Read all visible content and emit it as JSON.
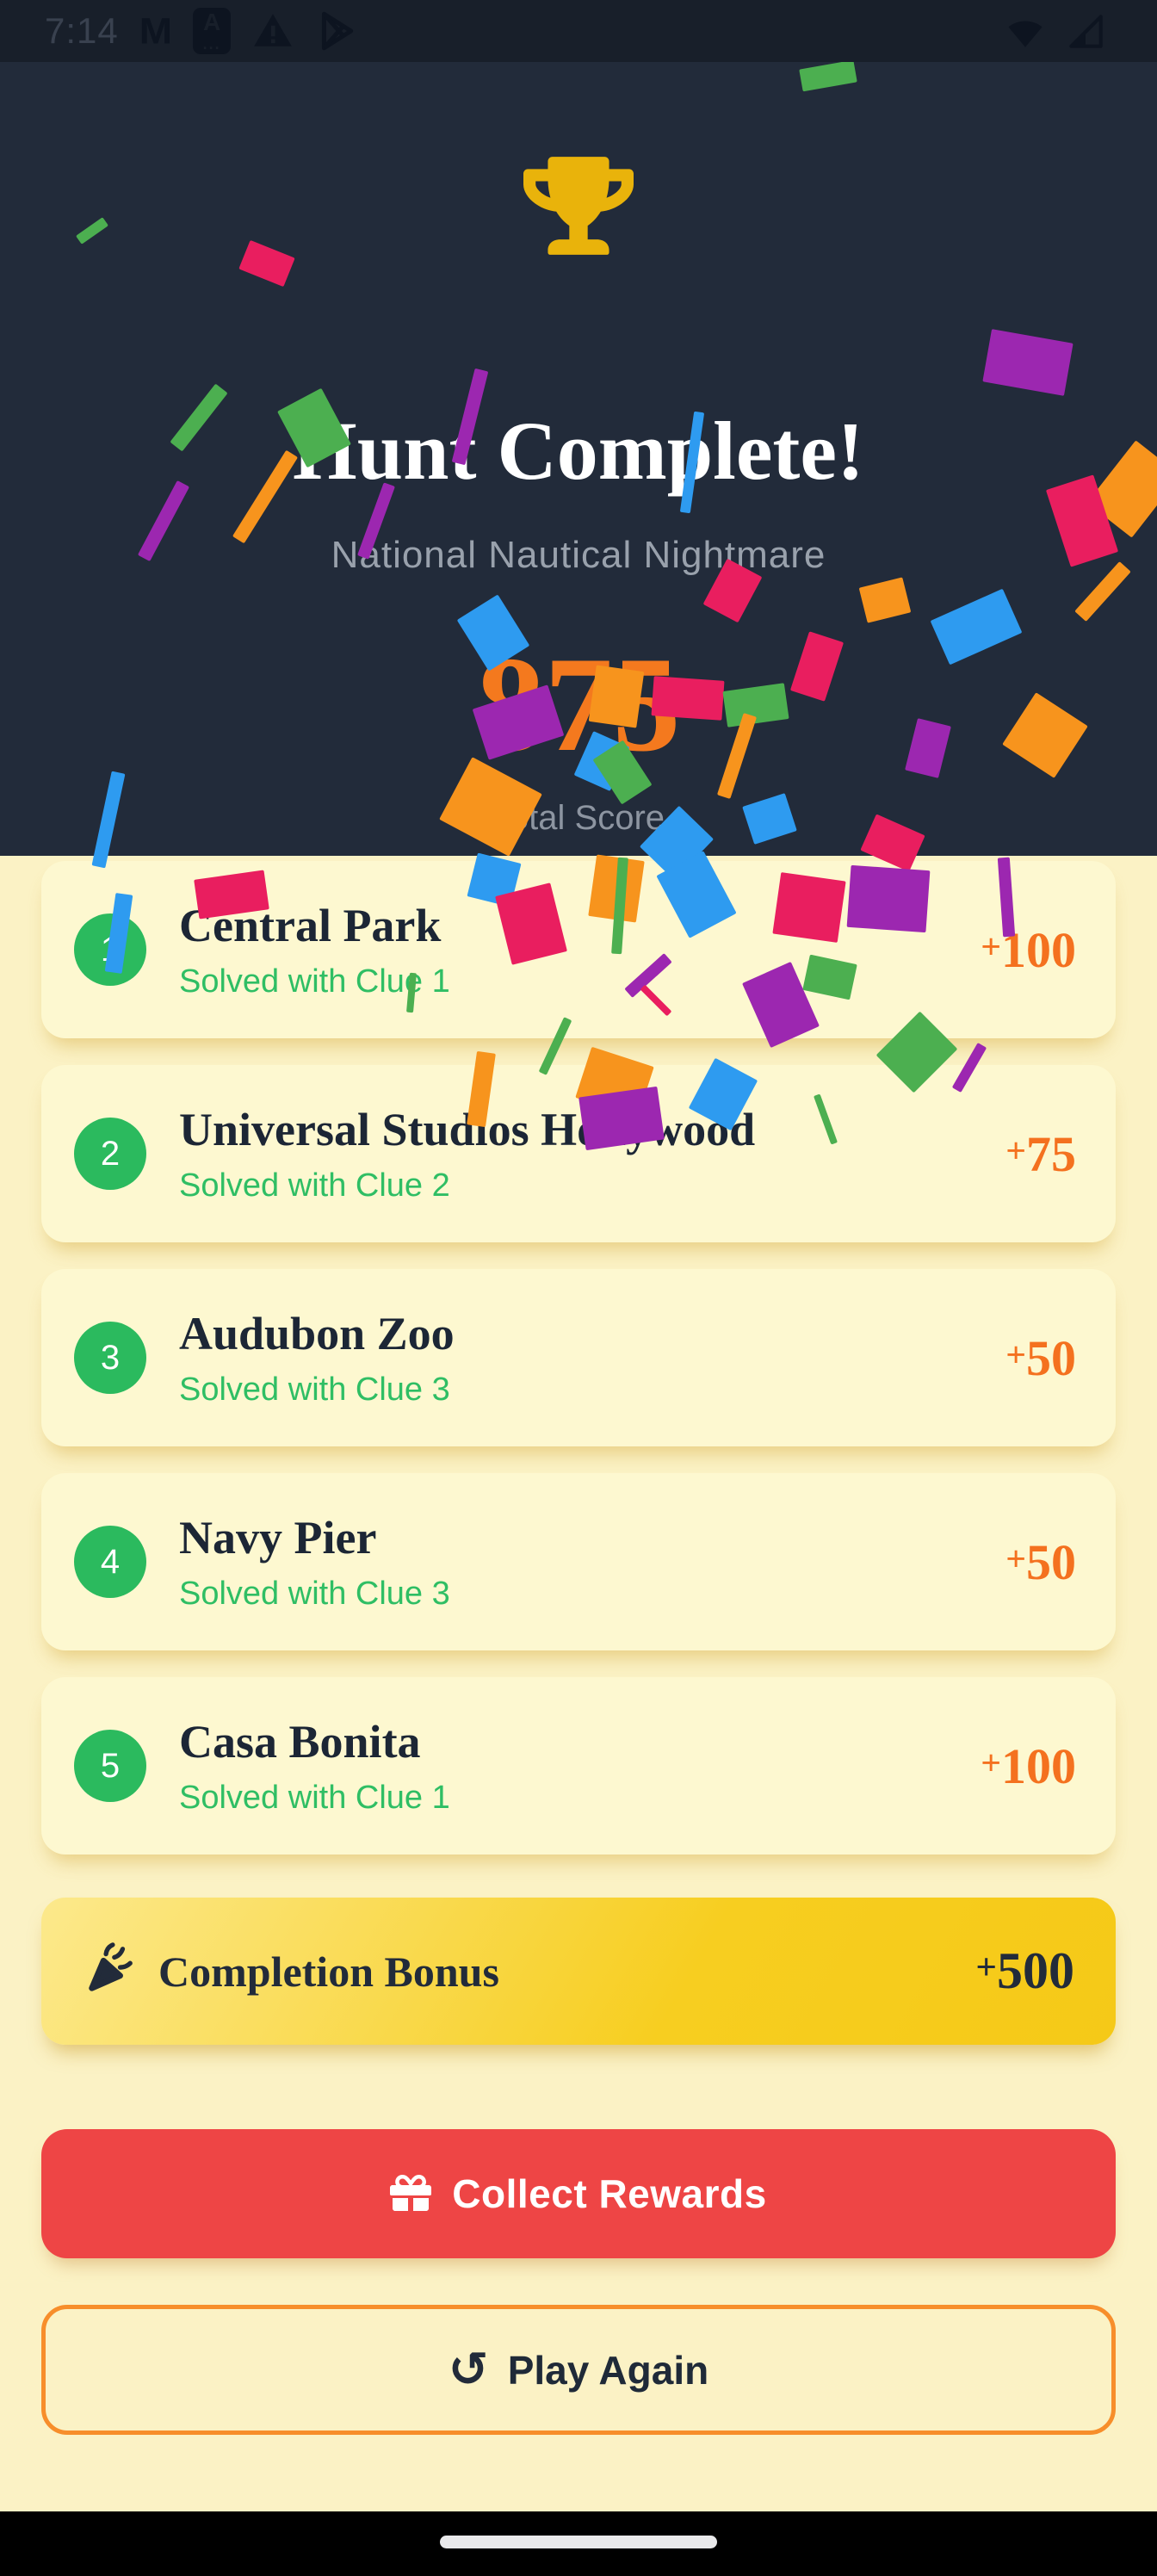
{
  "status_bar": {
    "time": "7:14",
    "left_icons": [
      "gmail-icon",
      "a-app-icon",
      "warning-icon",
      "play-store-icon"
    ],
    "right_icons": [
      "wifi-icon",
      "cell-signal-icon"
    ]
  },
  "header": {
    "title": "Hunt Complete!",
    "subtitle": "National Nautical Nightmare",
    "score": "875",
    "score_label": "Total Score"
  },
  "results": [
    {
      "rank": "1",
      "name": "Central Park",
      "detail": "Solved with Clue 1",
      "points": "+100"
    },
    {
      "rank": "2",
      "name": "Universal Studios Hollywood",
      "detail": "Solved with Clue 2",
      "points": "+75"
    },
    {
      "rank": "3",
      "name": "Audubon Zoo",
      "detail": "Solved with Clue 3",
      "points": "+50"
    },
    {
      "rank": "4",
      "name": "Navy Pier",
      "detail": "Solved with Clue 3",
      "points": "+50"
    },
    {
      "rank": "5",
      "name": "Casa Bonita",
      "detail": "Solved with Clue 1",
      "points": "+100"
    }
  ],
  "bonus": {
    "label": "Completion Bonus",
    "points": "+500",
    "icon": "party-popper-icon"
  },
  "actions": {
    "collect_label": "Collect Rewards",
    "play_again_label": "Play Again"
  },
  "colors": {
    "header_bg": "#222B3A",
    "status_bar_bg": "#181F2A",
    "page_bg": "#FBF2C5",
    "card_bg": "#FDF8D0",
    "trophy_gold": "#E9B30B",
    "score_orange": "#F4791E",
    "points_orange": "#F4711F",
    "badge_green": "#2BBA5E",
    "clue_green": "#2FBE64",
    "bonus_gold_start": "#FCE98C",
    "bonus_gold_end": "#F5C917",
    "collect_red": "#EE4545",
    "play_border_orange": "#F78E2B",
    "text_navy": "#1C2635",
    "confetti": [
      "#9C27B0",
      "#E91E5F",
      "#F7941D",
      "#2E9BF0",
      "#4CAF50"
    ]
  }
}
